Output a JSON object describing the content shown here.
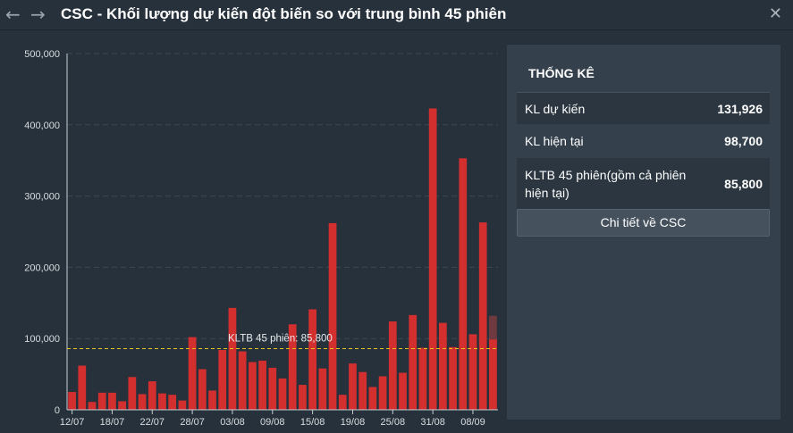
{
  "window": {
    "title": "CSC - Khối lượng dự kiến đột biến so với trung bình 45 phiên"
  },
  "icons": {
    "back": "arrow-left-icon",
    "forward": "arrow-right-icon",
    "close": "close-icon"
  },
  "colors": {
    "bar": "#d32f2f",
    "forecast_bar": "#6e3a40",
    "avg_line": "#e6c619",
    "panel": "#34414c"
  },
  "panel": {
    "title": "THỐNG KÊ",
    "stats": [
      {
        "label": "KL dự kiến",
        "value": "131,926"
      },
      {
        "label": "KL hiện tại",
        "value": "98,700"
      },
      {
        "label": "KLTB 45 phiên(gồm cả phiên hiện tại)",
        "value": "85,800"
      }
    ],
    "detail_button": "Chi tiết về CSC"
  },
  "chart_data": {
    "type": "bar",
    "x_ticks": [
      "12/07",
      "18/07",
      "22/07",
      "28/07",
      "03/08",
      "09/08",
      "15/08",
      "19/08",
      "25/08",
      "31/08",
      "08/09"
    ],
    "y_ticks": [
      "0",
      "100,000",
      "200,000",
      "300,000",
      "400,000",
      "500,000"
    ],
    "ylim": [
      0,
      500000
    ],
    "grid": true,
    "values": [
      25000,
      62000,
      11000,
      24000,
      24000,
      12000,
      46000,
      22000,
      40000,
      23000,
      21000,
      13000,
      102000,
      57000,
      27000,
      84000,
      143000,
      82000,
      67000,
      69000,
      59000,
      44000,
      120000,
      35000,
      141000,
      58000,
      262000,
      21000,
      65000,
      53000,
      32000,
      47000,
      124000,
      52000,
      133000,
      87000,
      423000,
      122000,
      88000,
      353000,
      106000,
      263000,
      98700
    ],
    "current_volume": 98700,
    "forecast_volume": 131926,
    "average_line": {
      "value": 85800,
      "label": "KLTB 45 phiên: 85,800"
    }
  }
}
